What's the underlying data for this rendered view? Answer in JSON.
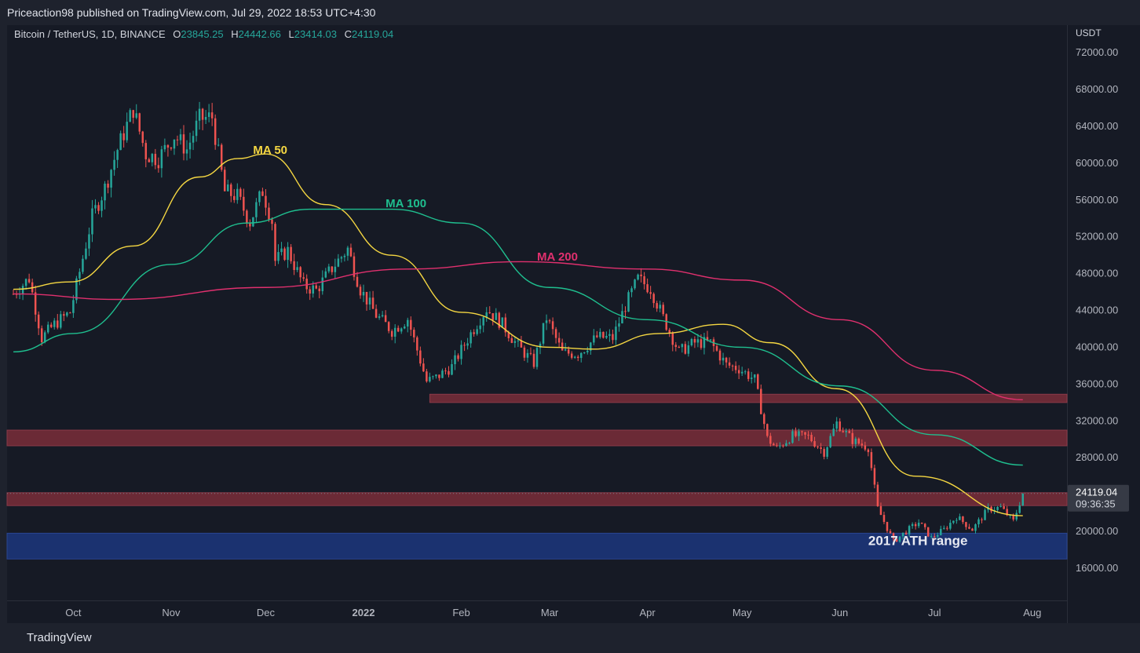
{
  "header": {
    "published": "Priceaction98 published on TradingView.com, Jul 29, 2022 18:53 UTC+4:30"
  },
  "legend": {
    "symbol": "Bitcoin / TetherUS, 1D, BINANCE",
    "open_label": "O",
    "open": "23845.25",
    "high_label": "H",
    "high": "24442.66",
    "low_label": "L",
    "low": "23414.03",
    "close_label": "C",
    "close": "24119.04"
  },
  "price_axis": {
    "unit": "USDT"
  },
  "current_price": {
    "price": "24119.04",
    "countdown": "09:36:35"
  },
  "footer": {
    "brand": "TradingView"
  },
  "colors": {
    "up": "#26a69a",
    "down": "#ef5350",
    "ma50": "#f5d742",
    "ma100": "#1fbf8f",
    "ma200": "#e0306e",
    "zone_red": "#6b2a36",
    "zone_blue": "#1b3270"
  },
  "chart_data": {
    "type": "candlestick",
    "interval": "1D",
    "ylim": [
      12500,
      75000
    ],
    "x_ticks": [
      {
        "label": "Oct",
        "date": "2021-10-01"
      },
      {
        "label": "Nov",
        "date": "2021-11-01"
      },
      {
        "label": "Dec",
        "date": "2021-12-01"
      },
      {
        "label": "2022",
        "date": "2022-01-01"
      },
      {
        "label": "Feb",
        "date": "2022-02-01"
      },
      {
        "label": "Mar",
        "date": "2022-03-01"
      },
      {
        "label": "Apr",
        "date": "2022-04-01"
      },
      {
        "label": "May",
        "date": "2022-05-01"
      },
      {
        "label": "Jun",
        "date": "2022-06-01"
      },
      {
        "label": "Jul",
        "date": "2022-07-01"
      },
      {
        "label": "Aug",
        "date": "2022-08-01"
      }
    ],
    "y_ticks": [
      "16000.00",
      "20000.00",
      "24000.00",
      "28000.00",
      "32000.00",
      "36000.00",
      "40000.00",
      "44000.00",
      "48000.00",
      "52000.00",
      "56000.00",
      "60000.00",
      "64000.00",
      "68000.00",
      "72000.00"
    ],
    "close_series": [
      [
        "2021-09-12",
        45800
      ],
      [
        "2021-09-17",
        47500
      ],
      [
        "2021-09-21",
        41000
      ],
      [
        "2021-09-25",
        42500
      ],
      [
        "2021-09-30",
        43800
      ],
      [
        "2021-10-03",
        48200
      ],
      [
        "2021-10-07",
        54200
      ],
      [
        "2021-10-11",
        57300
      ],
      [
        "2021-10-15",
        61500
      ],
      [
        "2021-10-20",
        65900
      ],
      [
        "2021-10-24",
        61000
      ],
      [
        "2021-10-28",
        60500
      ],
      [
        "2021-11-02",
        63000
      ],
      [
        "2021-11-06",
        61500
      ],
      [
        "2021-11-10",
        64800
      ],
      [
        "2021-11-14",
        65000
      ],
      [
        "2021-11-18",
        56900
      ],
      [
        "2021-11-22",
        56400
      ],
      [
        "2021-11-26",
        53600
      ],
      [
        "2021-11-30",
        57000
      ],
      [
        "2021-12-03",
        53700
      ],
      [
        "2021-12-04",
        49400
      ],
      [
        "2021-12-08",
        50500
      ],
      [
        "2021-12-13",
        46700
      ],
      [
        "2021-12-17",
        46200
      ],
      [
        "2021-12-22",
        48600
      ],
      [
        "2021-12-27",
        50700
      ],
      [
        "2021-12-31",
        46300
      ],
      [
        "2022-01-05",
        43500
      ],
      [
        "2022-01-10",
        41800
      ],
      [
        "2022-01-15",
        43100
      ],
      [
        "2022-01-21",
        36300
      ],
      [
        "2022-01-24",
        36700
      ],
      [
        "2022-01-29",
        37900
      ],
      [
        "2022-02-04",
        41500
      ],
      [
        "2022-02-09",
        44200
      ],
      [
        "2022-02-14",
        42500
      ],
      [
        "2022-02-19",
        40100
      ],
      [
        "2022-02-24",
        38300
      ],
      [
        "2022-02-28",
        43200
      ],
      [
        "2022-03-05",
        39400
      ],
      [
        "2022-03-10",
        39300
      ],
      [
        "2022-03-16",
        41100
      ],
      [
        "2022-03-21",
        41000
      ],
      [
        "2022-03-25",
        44500
      ],
      [
        "2022-03-29",
        47400
      ],
      [
        "2022-04-02",
        46400
      ],
      [
        "2022-04-06",
        43200
      ],
      [
        "2022-04-11",
        39500
      ],
      [
        "2022-04-16",
        40500
      ],
      [
        "2022-04-21",
        40500
      ],
      [
        "2022-04-26",
        38100
      ],
      [
        "2022-04-30",
        37700
      ],
      [
        "2022-05-05",
        36500
      ],
      [
        "2022-05-09",
        30100
      ],
      [
        "2022-05-12",
        29000
      ],
      [
        "2022-05-17",
        30400
      ],
      [
        "2022-05-22",
        30300
      ],
      [
        "2022-05-27",
        28600
      ],
      [
        "2022-05-31",
        31800
      ],
      [
        "2022-06-05",
        29900
      ],
      [
        "2022-06-10",
        29100
      ],
      [
        "2022-06-13",
        22500
      ],
      [
        "2022-06-18",
        18900
      ],
      [
        "2022-06-22",
        20000
      ],
      [
        "2022-06-26",
        21000
      ],
      [
        "2022-06-30",
        19300
      ],
      [
        "2022-07-04",
        20200
      ],
      [
        "2022-07-08",
        21600
      ],
      [
        "2022-07-13",
        20200
      ],
      [
        "2022-07-18",
        22400
      ],
      [
        "2022-07-22",
        22600
      ],
      [
        "2022-07-26",
        21100
      ],
      [
        "2022-07-29",
        24119
      ]
    ],
    "series": [
      {
        "name": "MA 50",
        "points": [
          [
            "2021-09-12",
            46300
          ],
          [
            "2021-09-30",
            47100
          ],
          [
            "2021-10-20",
            51000
          ],
          [
            "2021-11-10",
            58500
          ],
          [
            "2021-11-22",
            60500
          ],
          [
            "2021-12-01",
            61000
          ],
          [
            "2021-12-20",
            55500
          ],
          [
            "2022-01-10",
            50000
          ],
          [
            "2022-02-01",
            43800
          ],
          [
            "2022-03-01",
            40000
          ],
          [
            "2022-03-15",
            39800
          ],
          [
            "2022-04-05",
            41500
          ],
          [
            "2022-04-25",
            42500
          ],
          [
            "2022-05-10",
            40500
          ],
          [
            "2022-05-31",
            35500
          ],
          [
            "2022-06-25",
            26000
          ],
          [
            "2022-07-29",
            21700
          ]
        ]
      },
      {
        "name": "MA 100",
        "points": [
          [
            "2021-09-12",
            39500
          ],
          [
            "2021-10-01",
            41500
          ],
          [
            "2021-11-01",
            49000
          ],
          [
            "2021-11-25",
            53500
          ],
          [
            "2021-12-15",
            55000
          ],
          [
            "2022-01-10",
            55000
          ],
          [
            "2022-02-01",
            53500
          ],
          [
            "2022-03-01",
            46500
          ],
          [
            "2022-04-01",
            43000
          ],
          [
            "2022-05-01",
            40000
          ],
          [
            "2022-06-01",
            35800
          ],
          [
            "2022-07-01",
            30500
          ],
          [
            "2022-07-29",
            27200
          ]
        ]
      },
      {
        "name": "MA 200",
        "points": [
          [
            "2021-09-12",
            45800
          ],
          [
            "2021-10-15",
            45200
          ],
          [
            "2021-12-01",
            46500
          ],
          [
            "2022-01-15",
            48500
          ],
          [
            "2022-02-20",
            49300
          ],
          [
            "2022-04-01",
            48500
          ],
          [
            "2022-05-01",
            47300
          ],
          [
            "2022-06-01",
            43000
          ],
          [
            "2022-07-01",
            37500
          ],
          [
            "2022-07-29",
            34300
          ]
        ]
      }
    ],
    "annotations": [
      {
        "text": "MA 50",
        "x": "2021-11-27",
        "y": 61000
      },
      {
        "text": "MA 100",
        "x": "2022-01-08",
        "y": 55200
      },
      {
        "text": "MA 200",
        "x": "2022-02-25",
        "y": 49400
      },
      {
        "text": "2017 ATH range",
        "x": "2022-06-10",
        "y": 18500
      }
    ],
    "zones": [
      {
        "type": "resistance",
        "y0": 34000,
        "y1": 34900,
        "x0": "2022-01-22",
        "x1": "end"
      },
      {
        "type": "resistance",
        "y0": 29300,
        "y1": 31000,
        "x0": "start",
        "x1": "end"
      },
      {
        "type": "resistance",
        "y0": 22800,
        "y1": 24200,
        "x0": "start",
        "x1": "end"
      },
      {
        "type": "support",
        "y0": 17000,
        "y1": 19800,
        "x0": "start",
        "x1": "end"
      }
    ]
  }
}
